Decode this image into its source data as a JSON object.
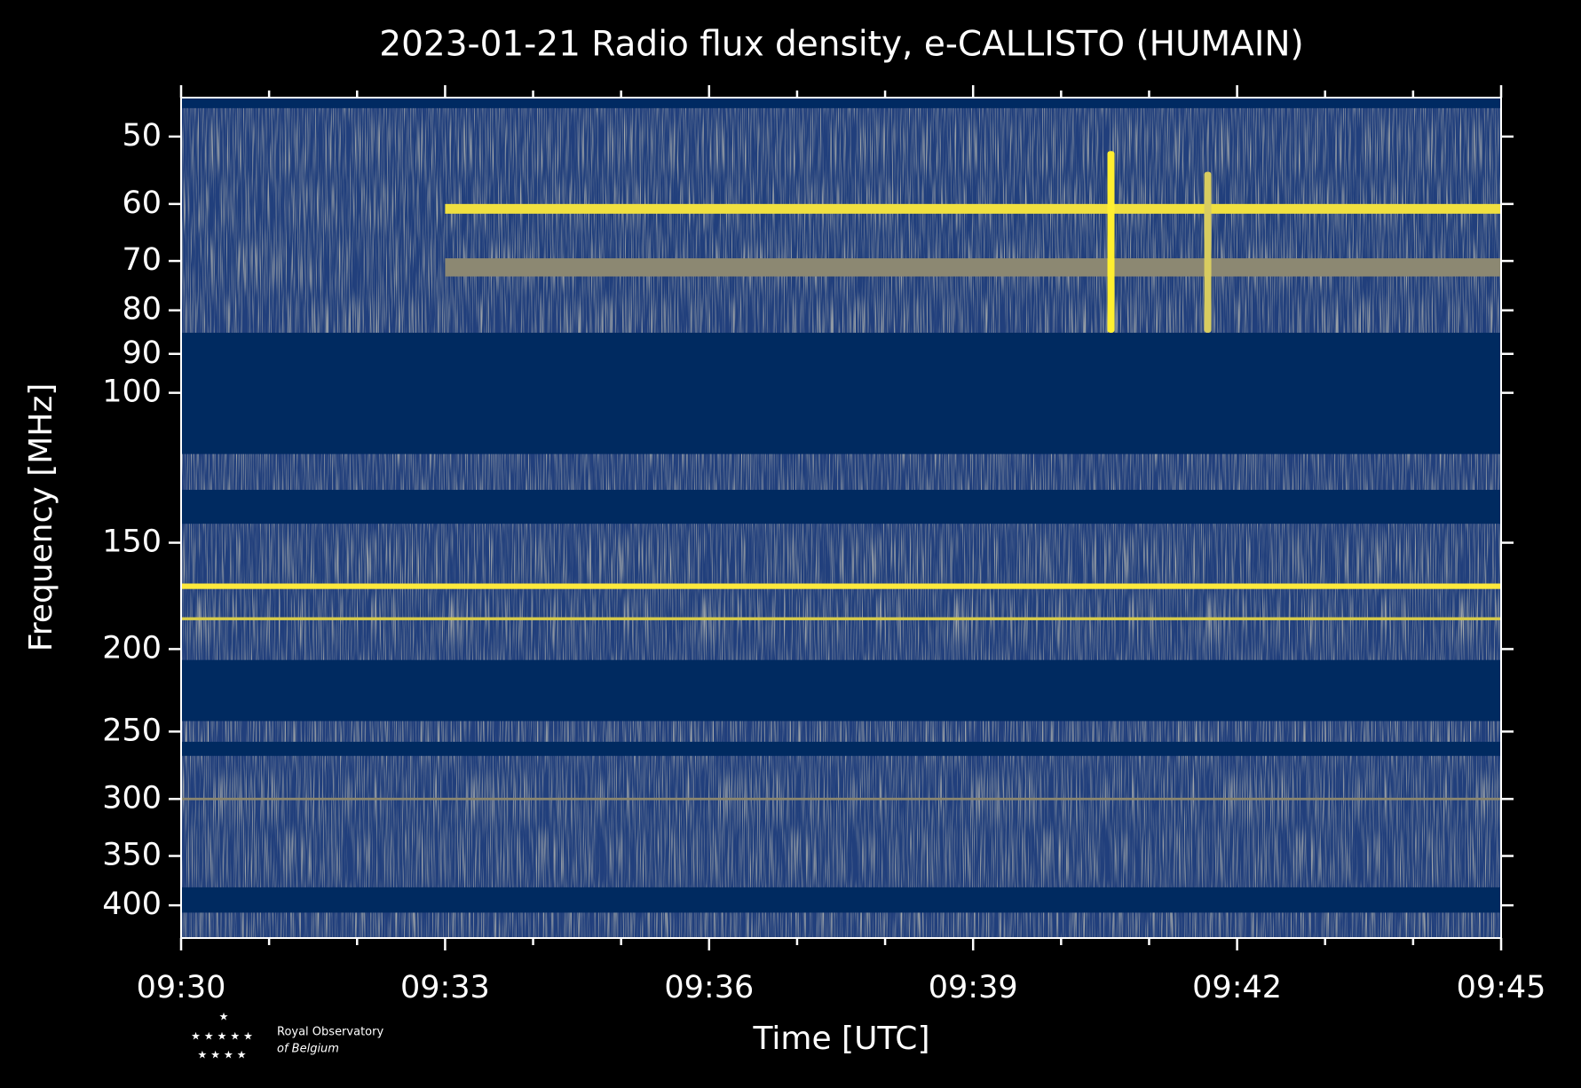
{
  "chart_data": {
    "type": "spectrogram",
    "title": "2023-01-21 Radio flux density, e-CALLISTO (HUMAIN)",
    "x_label": "Time [UTC]",
    "y_label": "Frequency [MHz]",
    "xlim": [
      "09:30",
      "09:45"
    ],
    "xticks": [
      "09:30",
      "09:33",
      "09:36",
      "09:39",
      "09:42",
      "09:45"
    ],
    "xminorticks": [
      "09:31",
      "09:32",
      "09:34",
      "09:35",
      "09:37",
      "09:38",
      "09:40",
      "09:41",
      "09:43",
      "09:44"
    ],
    "ylim": [
      437,
      45
    ],
    "y_scale": "log",
    "yticks": [
      50,
      60,
      70,
      80,
      90,
      100,
      150,
      200,
      250,
      300,
      350,
      400
    ],
    "background_color": "#213f7c",
    "bands": [
      {
        "lo": 45,
        "hi": 46.3,
        "color": "#002a62"
      },
      {
        "lo": 85,
        "hi": 118,
        "color": "#002a60"
      },
      {
        "lo": 130,
        "hi": 142.5,
        "color": "#002a60"
      },
      {
        "lo": 206,
        "hi": 243,
        "color": "#002a60"
      },
      {
        "lo": 257,
        "hi": 267,
        "color": "#002a60"
      },
      {
        "lo": 381,
        "hi": 408,
        "color": "#002a60"
      },
      {
        "lo": 60,
        "hi": 61.6,
        "color": "#f0e040",
        "start": "09:33"
      },
      {
        "lo": 69.5,
        "hi": 73,
        "color": "#8c8872",
        "start": "09:33"
      },
      {
        "lo": 167.5,
        "hi": 170,
        "color": "#fde93c"
      },
      {
        "lo": 183.5,
        "hi": 185,
        "color": "#d8cc4a"
      },
      {
        "lo": 299,
        "hi": 301,
        "color": "#8a8670"
      }
    ],
    "bursts": [
      {
        "time": "09:40:34",
        "lo": 52,
        "hi": 85,
        "color": "#ffef30"
      },
      {
        "time": "09:41:40",
        "lo": 55,
        "hi": 85,
        "color": "#d8cc60"
      }
    ],
    "logo": {
      "line1": "Royal Observatory",
      "line2": "of Belgium"
    }
  }
}
